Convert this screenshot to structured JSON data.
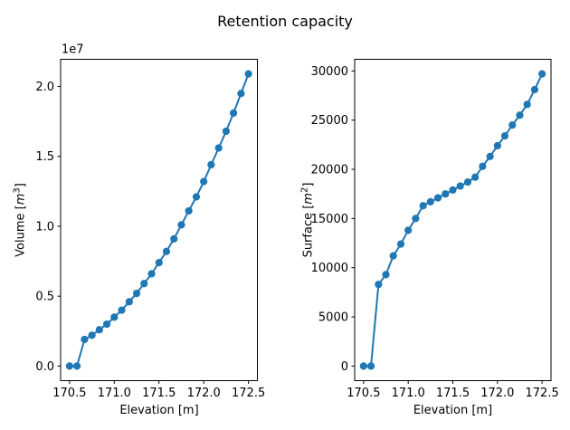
{
  "figure": {
    "title": "Retention capacity",
    "background": "#ffffff"
  },
  "chart_data": [
    {
      "type": "line",
      "name": "volume-curve",
      "xlabel": "Elevation [m]",
      "ylabel": {
        "prefix": "Volume [",
        "unit": "m",
        "exponent": "3",
        "suffix": "]"
      },
      "offset_text": "1e7",
      "line_color": "#1f77b4",
      "marker": "circle",
      "legend": "none",
      "grid": false,
      "x": [
        170.5,
        170.583,
        170.667,
        170.75,
        170.833,
        170.917,
        171.0,
        171.083,
        171.167,
        171.25,
        171.333,
        171.417,
        171.5,
        171.583,
        171.667,
        171.75,
        171.833,
        171.917,
        172.0,
        172.083,
        172.167,
        172.25,
        172.333,
        172.417,
        172.5
      ],
      "y": [
        0,
        0,
        1900000,
        2200000,
        2600000,
        3000000,
        3500000,
        4000000,
        4600000,
        5200000,
        5900000,
        6600000,
        7400000,
        8200000,
        9100000,
        10100000,
        11100000,
        12100000,
        13200000,
        14400000,
        15600000,
        16800000,
        18100000,
        19500000,
        20900000
      ],
      "xlim": [
        170.4,
        172.6
      ],
      "ylim": [
        -1045000,
        21945000
      ],
      "xticks": {
        "values": [
          170.5,
          171.0,
          171.5,
          172.0,
          172.5
        ],
        "labels": [
          "170.5",
          "171.0",
          "171.5",
          "172.0",
          "172.5"
        ]
      },
      "yticks": {
        "values": [
          0,
          5000000,
          10000000,
          15000000,
          20000000
        ],
        "labels": [
          "0.0",
          "0.5",
          "1.0",
          "1.5",
          "2.0"
        ]
      }
    },
    {
      "type": "line",
      "name": "surface-curve",
      "xlabel": "Elevation [m]",
      "ylabel": {
        "prefix": "Surface [",
        "unit": "m",
        "exponent": "2",
        "suffix": "]"
      },
      "offset_text": "",
      "line_color": "#1f77b4",
      "marker": "circle",
      "legend": "none",
      "grid": false,
      "x": [
        170.5,
        170.583,
        170.667,
        170.75,
        170.833,
        170.917,
        171.0,
        171.083,
        171.167,
        171.25,
        171.333,
        171.417,
        171.5,
        171.583,
        171.667,
        171.75,
        171.833,
        171.917,
        172.0,
        172.083,
        172.167,
        172.25,
        172.333,
        172.417,
        172.5
      ],
      "y": [
        0,
        0,
        8300,
        9300,
        11200,
        12400,
        13800,
        15000,
        16300,
        16700,
        17100,
        17500,
        17900,
        18300,
        18700,
        19200,
        20300,
        21300,
        22400,
        23400,
        24500,
        25500,
        26600,
        28100,
        29700
      ],
      "xlim": [
        170.4,
        172.6
      ],
      "ylim": [
        -1485,
        31185
      ],
      "xticks": {
        "values": [
          170.5,
          171.0,
          171.5,
          172.0,
          172.5
        ],
        "labels": [
          "170.5",
          "171.0",
          "171.5",
          "172.0",
          "172.5"
        ]
      },
      "yticks": {
        "values": [
          0,
          5000,
          10000,
          15000,
          20000,
          25000,
          30000
        ],
        "labels": [
          "0",
          "5000",
          "10000",
          "15000",
          "20000",
          "25000",
          "30000"
        ]
      }
    }
  ]
}
